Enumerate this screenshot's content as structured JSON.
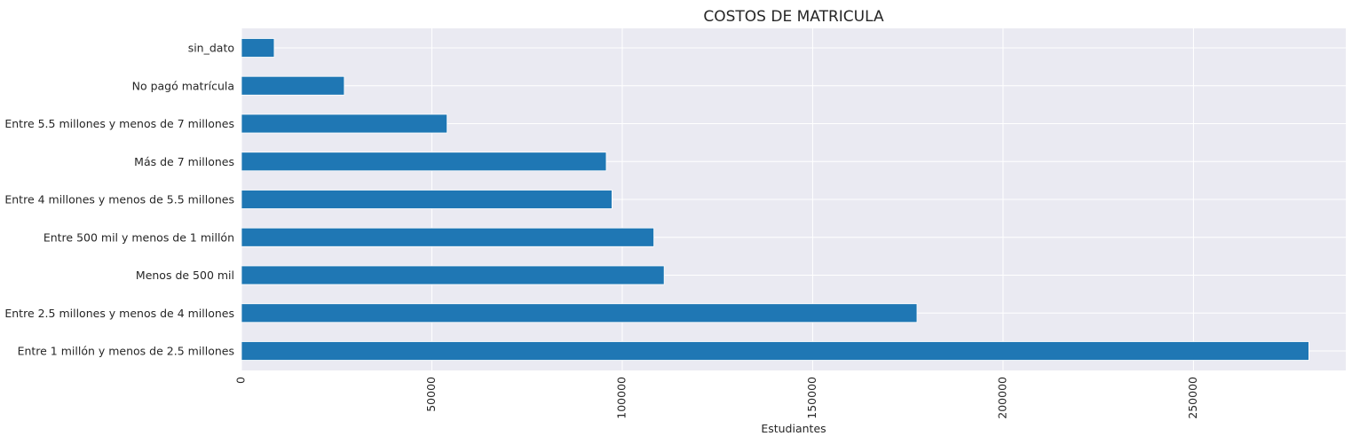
{
  "chart_data": {
    "type": "bar",
    "orientation": "horizontal",
    "title": "COSTOS DE MATRICULA",
    "xlabel": "Estudiantes",
    "ylabel": "",
    "categories": [
      "sin_dato",
      "No pagó matrícula",
      "Entre 5.5 millones y menos de 7 millones",
      "Más de 7 millones",
      "Entre 4 millones y menos de 5.5 millones",
      "Entre 500 mil y menos de 1 millón",
      "Menos de 500 mil",
      "Entre 2.5 millones y menos de 4 millones",
      "Entre 1 millón y menos de 2.5 millones"
    ],
    "values": [
      8600,
      27000,
      54000,
      95800,
      97300,
      108300,
      111000,
      177400,
      280300
    ],
    "xlim": [
      0,
      290000
    ],
    "xticks": [
      0,
      50000,
      100000,
      150000,
      200000,
      250000
    ],
    "xtick_labels": [
      "0",
      "50000",
      "100000",
      "150000",
      "200000",
      "250000"
    ],
    "grid": true,
    "bar_color": "#1f77b4",
    "plot_background": "#eaeaf2"
  }
}
